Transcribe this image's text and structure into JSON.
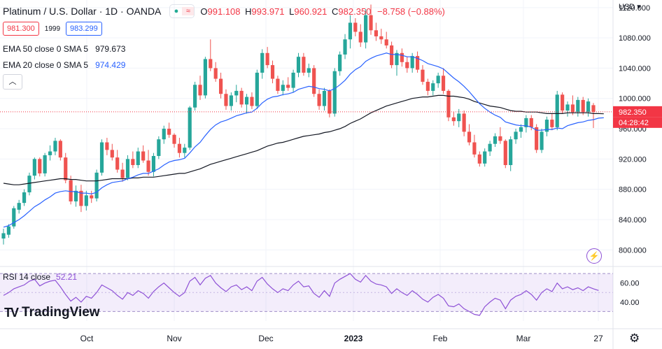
{
  "header": {
    "title": "Platinum / U.S. Dollar · 1D · OANDA",
    "open_label": "O",
    "open": "991.108",
    "high_label": "H",
    "high": "993.971",
    "low_label": "L",
    "low": "960.921",
    "close_label": "C",
    "close": "982.350",
    "change": "−8.758 (−0.88%)",
    "ctrl_dot": "●",
    "ctrl_wave": "≈"
  },
  "quote": {
    "bid": "981.300",
    "spread": "1999",
    "ask": "983.299"
  },
  "indicators": [
    {
      "label": "EMA 50 close 0 SMA 5",
      "value": "979.673",
      "color": "#131722"
    },
    {
      "label": "EMA 20 close 0 SMA 5",
      "value": "974.429",
      "color": "#2962ff"
    }
  ],
  "collapse_icon": "chevron-up",
  "rsi": {
    "label": "RSI 14 close",
    "value": "52.21",
    "ticks": [
      "60.00",
      "40.00"
    ]
  },
  "logo": {
    "text": "TradingView"
  },
  "price_tag": {
    "price": "982.350",
    "countdown": "04:28:42"
  },
  "colors": {
    "up": "#26a69a",
    "down": "#ef5350",
    "ema50": "#131722",
    "ema20": "#2962ff",
    "rsi": "#8e51d6"
  },
  "chart_data": {
    "type": "candlestick",
    "currency_label": "USD",
    "y_ticks": [
      800,
      840,
      880,
      920,
      960,
      1000,
      1040,
      1080,
      1120
    ],
    "y_tick_labels": [
      "800.000",
      "840.000",
      "880.000",
      "920.000",
      "960.000",
      "1000.000",
      "1040.000",
      "1080.000",
      "1120.000"
    ],
    "ylim": [
      779,
      1130
    ],
    "x_labels": [
      "Oct",
      "Nov",
      "Dec",
      "2023",
      "Feb",
      "Mar",
      "27"
    ],
    "candles": [
      {
        "o": 815,
        "h": 828,
        "l": 807,
        "c": 822
      },
      {
        "o": 820,
        "h": 834,
        "l": 816,
        "c": 831
      },
      {
        "o": 831,
        "h": 858,
        "l": 828,
        "c": 855
      },
      {
        "o": 853,
        "h": 866,
        "l": 848,
        "c": 862
      },
      {
        "o": 862,
        "h": 880,
        "l": 858,
        "c": 876
      },
      {
        "o": 876,
        "h": 902,
        "l": 872,
        "c": 898
      },
      {
        "o": 898,
        "h": 922,
        "l": 893,
        "c": 920
      },
      {
        "o": 920,
        "h": 922,
        "l": 897,
        "c": 901
      },
      {
        "o": 901,
        "h": 928,
        "l": 897,
        "c": 925
      },
      {
        "o": 925,
        "h": 938,
        "l": 918,
        "c": 930
      },
      {
        "o": 930,
        "h": 948,
        "l": 925,
        "c": 944
      },
      {
        "o": 944,
        "h": 946,
        "l": 918,
        "c": 922
      },
      {
        "o": 922,
        "h": 928,
        "l": 888,
        "c": 892
      },
      {
        "o": 892,
        "h": 898,
        "l": 860,
        "c": 864
      },
      {
        "o": 864,
        "h": 885,
        "l": 857,
        "c": 878
      },
      {
        "o": 878,
        "h": 886,
        "l": 850,
        "c": 858
      },
      {
        "o": 858,
        "h": 878,
        "l": 852,
        "c": 872
      },
      {
        "o": 872,
        "h": 878,
        "l": 862,
        "c": 868
      },
      {
        "o": 868,
        "h": 906,
        "l": 864,
        "c": 902
      },
      {
        "o": 902,
        "h": 946,
        "l": 898,
        "c": 942
      },
      {
        "o": 942,
        "h": 948,
        "l": 925,
        "c": 932
      },
      {
        "o": 932,
        "h": 940,
        "l": 918,
        "c": 922
      },
      {
        "o": 922,
        "h": 932,
        "l": 902,
        "c": 906
      },
      {
        "o": 906,
        "h": 915,
        "l": 890,
        "c": 895
      },
      {
        "o": 895,
        "h": 925,
        "l": 892,
        "c": 920
      },
      {
        "o": 920,
        "h": 930,
        "l": 908,
        "c": 912
      },
      {
        "o": 912,
        "h": 935,
        "l": 908,
        "c": 930
      },
      {
        "o": 930,
        "h": 938,
        "l": 915,
        "c": 918
      },
      {
        "o": 918,
        "h": 932,
        "l": 898,
        "c": 903
      },
      {
        "o": 903,
        "h": 928,
        "l": 897,
        "c": 924
      },
      {
        "o": 924,
        "h": 950,
        "l": 920,
        "c": 946
      },
      {
        "o": 946,
        "h": 964,
        "l": 940,
        "c": 960
      },
      {
        "o": 960,
        "h": 968,
        "l": 948,
        "c": 952
      },
      {
        "o": 952,
        "h": 954,
        "l": 935,
        "c": 940
      },
      {
        "o": 940,
        "h": 948,
        "l": 922,
        "c": 928
      },
      {
        "o": 928,
        "h": 940,
        "l": 922,
        "c": 935
      },
      {
        "o": 935,
        "h": 990,
        "l": 932,
        "c": 988
      },
      {
        "o": 988,
        "h": 1022,
        "l": 984,
        "c": 1018
      },
      {
        "o": 1018,
        "h": 1030,
        "l": 998,
        "c": 1004
      },
      {
        "o": 1004,
        "h": 1055,
        "l": 1000,
        "c": 1052
      },
      {
        "o": 1052,
        "h": 1078,
        "l": 1036,
        "c": 1040
      },
      {
        "o": 1040,
        "h": 1048,
        "l": 1022,
        "c": 1026
      },
      {
        "o": 1026,
        "h": 1034,
        "l": 1000,
        "c": 1006
      },
      {
        "o": 1006,
        "h": 1012,
        "l": 985,
        "c": 990
      },
      {
        "o": 990,
        "h": 1008,
        "l": 984,
        "c": 1004
      },
      {
        "o": 1004,
        "h": 1018,
        "l": 995,
        "c": 1010
      },
      {
        "o": 1010,
        "h": 1014,
        "l": 988,
        "c": 992
      },
      {
        "o": 992,
        "h": 1006,
        "l": 980,
        "c": 1002
      },
      {
        "o": 1002,
        "h": 1008,
        "l": 986,
        "c": 990
      },
      {
        "o": 990,
        "h": 1038,
        "l": 986,
        "c": 1034
      },
      {
        "o": 1034,
        "h": 1065,
        "l": 1026,
        "c": 1060
      },
      {
        "o": 1060,
        "h": 1068,
        "l": 1040,
        "c": 1044
      },
      {
        "o": 1044,
        "h": 1050,
        "l": 1020,
        "c": 1026
      },
      {
        "o": 1026,
        "h": 1030,
        "l": 1006,
        "c": 1010
      },
      {
        "o": 1010,
        "h": 1024,
        "l": 1004,
        "c": 1018
      },
      {
        "o": 1018,
        "h": 1028,
        "l": 1010,
        "c": 1014
      },
      {
        "o": 1014,
        "h": 1038,
        "l": 1008,
        "c": 1034
      },
      {
        "o": 1034,
        "h": 1060,
        "l": 1028,
        "c": 1055
      },
      {
        "o": 1055,
        "h": 1060,
        "l": 1030,
        "c": 1034
      },
      {
        "o": 1034,
        "h": 1046,
        "l": 1028,
        "c": 1040
      },
      {
        "o": 1040,
        "h": 1044,
        "l": 1002,
        "c": 1006
      },
      {
        "o": 1006,
        "h": 1012,
        "l": 985,
        "c": 990
      },
      {
        "o": 990,
        "h": 1014,
        "l": 984,
        "c": 1010
      },
      {
        "o": 1010,
        "h": 1012,
        "l": 975,
        "c": 980
      },
      {
        "o": 980,
        "h": 1040,
        "l": 976,
        "c": 1036
      },
      {
        "o": 1036,
        "h": 1062,
        "l": 1030,
        "c": 1058
      },
      {
        "o": 1058,
        "h": 1085,
        "l": 1052,
        "c": 1078
      },
      {
        "o": 1078,
        "h": 1110,
        "l": 1066,
        "c": 1100
      },
      {
        "o": 1100,
        "h": 1106,
        "l": 1082,
        "c": 1088
      },
      {
        "o": 1088,
        "h": 1098,
        "l": 1068,
        "c": 1074
      },
      {
        "o": 1074,
        "h": 1118,
        "l": 1066,
        "c": 1110
      },
      {
        "o": 1110,
        "h": 1124,
        "l": 1084,
        "c": 1090
      },
      {
        "o": 1090,
        "h": 1100,
        "l": 1076,
        "c": 1082
      },
      {
        "o": 1082,
        "h": 1092,
        "l": 1072,
        "c": 1078
      },
      {
        "o": 1078,
        "h": 1088,
        "l": 1066,
        "c": 1070
      },
      {
        "o": 1070,
        "h": 1075,
        "l": 1040,
        "c": 1044
      },
      {
        "o": 1044,
        "h": 1064,
        "l": 1030,
        "c": 1060
      },
      {
        "o": 1060,
        "h": 1066,
        "l": 1042,
        "c": 1048
      },
      {
        "o": 1048,
        "h": 1055,
        "l": 1034,
        "c": 1040
      },
      {
        "o": 1040,
        "h": 1060,
        "l": 1034,
        "c": 1056
      },
      {
        "o": 1056,
        "h": 1062,
        "l": 1034,
        "c": 1038
      },
      {
        "o": 1038,
        "h": 1044,
        "l": 1018,
        "c": 1022
      },
      {
        "o": 1022,
        "h": 1026,
        "l": 1004,
        "c": 1010
      },
      {
        "o": 1010,
        "h": 1024,
        "l": 1004,
        "c": 1020
      },
      {
        "o": 1020,
        "h": 1034,
        "l": 1014,
        "c": 1030
      },
      {
        "o": 1030,
        "h": 1040,
        "l": 1006,
        "c": 1010
      },
      {
        "o": 1010,
        "h": 1012,
        "l": 970,
        "c": 975
      },
      {
        "o": 975,
        "h": 982,
        "l": 964,
        "c": 970
      },
      {
        "o": 970,
        "h": 986,
        "l": 962,
        "c": 980
      },
      {
        "o": 980,
        "h": 984,
        "l": 950,
        "c": 956
      },
      {
        "o": 956,
        "h": 966,
        "l": 938,
        "c": 942
      },
      {
        "o": 942,
        "h": 952,
        "l": 922,
        "c": 926
      },
      {
        "o": 926,
        "h": 930,
        "l": 910,
        "c": 914
      },
      {
        "o": 914,
        "h": 934,
        "l": 910,
        "c": 930
      },
      {
        "o": 930,
        "h": 944,
        "l": 924,
        "c": 940
      },
      {
        "o": 940,
        "h": 954,
        "l": 936,
        "c": 950
      },
      {
        "o": 950,
        "h": 962,
        "l": 940,
        "c": 944
      },
      {
        "o": 944,
        "h": 946,
        "l": 908,
        "c": 912
      },
      {
        "o": 912,
        "h": 950,
        "l": 904,
        "c": 946
      },
      {
        "o": 946,
        "h": 960,
        "l": 940,
        "c": 956
      },
      {
        "o": 956,
        "h": 966,
        "l": 948,
        "c": 962
      },
      {
        "o": 962,
        "h": 978,
        "l": 955,
        "c": 974
      },
      {
        "o": 974,
        "h": 978,
        "l": 958,
        "c": 962
      },
      {
        "o": 962,
        "h": 966,
        "l": 928,
        "c": 932
      },
      {
        "o": 932,
        "h": 960,
        "l": 928,
        "c": 956
      },
      {
        "o": 956,
        "h": 976,
        "l": 950,
        "c": 972
      },
      {
        "o": 972,
        "h": 980,
        "l": 958,
        "c": 962
      },
      {
        "o": 962,
        "h": 1010,
        "l": 958,
        "c": 1005
      },
      {
        "o": 1005,
        "h": 1008,
        "l": 980,
        "c": 984
      },
      {
        "o": 984,
        "h": 996,
        "l": 976,
        "c": 992
      },
      {
        "o": 992,
        "h": 1004,
        "l": 978,
        "c": 982
      },
      {
        "o": 982,
        "h": 1002,
        "l": 976,
        "c": 998
      },
      {
        "o": 998,
        "h": 1002,
        "l": 978,
        "c": 982
      },
      {
        "o": 982,
        "h": 1000,
        "l": 976,
        "c": 996
      },
      {
        "o": 991.108,
        "h": 993.971,
        "l": 960.921,
        "c": 982.35
      }
    ],
    "ema50": [
      888,
      887,
      886,
      886,
      887,
      888,
      889,
      890,
      891,
      892,
      893,
      894,
      894,
      893,
      893,
      892,
      891,
      891,
      891,
      892,
      893,
      894,
      894,
      894,
      894,
      895,
      895,
      896,
      896,
      896,
      897,
      898,
      899,
      900,
      901,
      901,
      903,
      905,
      907,
      910,
      913,
      915,
      917,
      919,
      921,
      923,
      925,
      927,
      929,
      931,
      934,
      937,
      939,
      941,
      942,
      944,
      946,
      948,
      950,
      951,
      952,
      953,
      955,
      956,
      958,
      960,
      963,
      967,
      970,
      973,
      977,
      981,
      984,
      987,
      990,
      992,
      994,
      996,
      998,
      1000,
      1001,
      1002,
      1002,
      1003,
      1004,
      1004,
      1003,
      1003,
      1002,
      1001,
      999,
      996,
      994,
      992,
      990,
      989,
      988,
      986,
      984,
      983,
      983,
      982,
      982,
      982,
      981,
      980,
      980,
      980,
      980,
      981,
      981,
      981,
      981,
      981,
      980,
      980,
      979.673
    ],
    "ema20": [
      830,
      832,
      836,
      840,
      845,
      851,
      857,
      861,
      866,
      870,
      875,
      877,
      878,
      877,
      877,
      875,
      875,
      874,
      876,
      882,
      886,
      889,
      890,
      891,
      894,
      896,
      899,
      901,
      901,
      904,
      907,
      912,
      916,
      918,
      919,
      921,
      928,
      936,
      942,
      951,
      959,
      965,
      969,
      971,
      974,
      977,
      979,
      981,
      982,
      987,
      994,
      999,
      1002,
      1003,
      1005,
      1006,
      1008,
      1012,
      1014,
      1016,
      1015,
      1013,
      1012,
      1010,
      1013,
      1018,
      1024,
      1032,
      1038,
      1042,
      1049,
      1053,
      1056,
      1058,
      1060,
      1058,
      1058,
      1057,
      1055,
      1055,
      1053,
      1050,
      1046,
      1044,
      1042,
      1039,
      1033,
      1027,
      1022,
      1016,
      1009,
      1001,
      993,
      987,
      982,
      978,
      975,
      969,
      967,
      965,
      964,
      964,
      962,
      958,
      958,
      959,
      959,
      961,
      960,
      964,
      966,
      968,
      969,
      971,
      972,
      974,
      974.429
    ],
    "rsi_values": [
      47,
      50,
      54,
      56,
      58,
      62,
      64,
      57,
      60,
      62,
      63,
      56,
      48,
      41,
      45,
      40,
      46,
      44,
      50,
      58,
      55,
      52,
      47,
      43,
      50,
      47,
      52,
      49,
      44,
      51,
      56,
      60,
      55,
      50,
      46,
      50,
      62,
      66,
      58,
      65,
      68,
      60,
      55,
      51,
      56,
      58,
      53,
      56,
      52,
      62,
      66,
      59,
      54,
      50,
      54,
      52,
      58,
      62,
      56,
      57,
      49,
      45,
      52,
      46,
      60,
      64,
      67,
      70,
      64,
      61,
      68,
      62,
      59,
      58,
      56,
      49,
      54,
      50,
      47,
      52,
      48,
      43,
      40,
      45,
      48,
      44,
      36,
      35,
      38,
      33,
      30,
      27,
      26,
      35,
      40,
      44,
      42,
      33,
      42,
      46,
      48,
      52,
      48,
      42,
      50,
      54,
      51,
      60,
      54,
      56,
      53,
      55,
      52,
      56,
      54,
      52.21
    ],
    "rsi_ylim": [
      20,
      76
    ],
    "rsi_band": [
      30,
      70
    ],
    "last_close": 982.35
  }
}
